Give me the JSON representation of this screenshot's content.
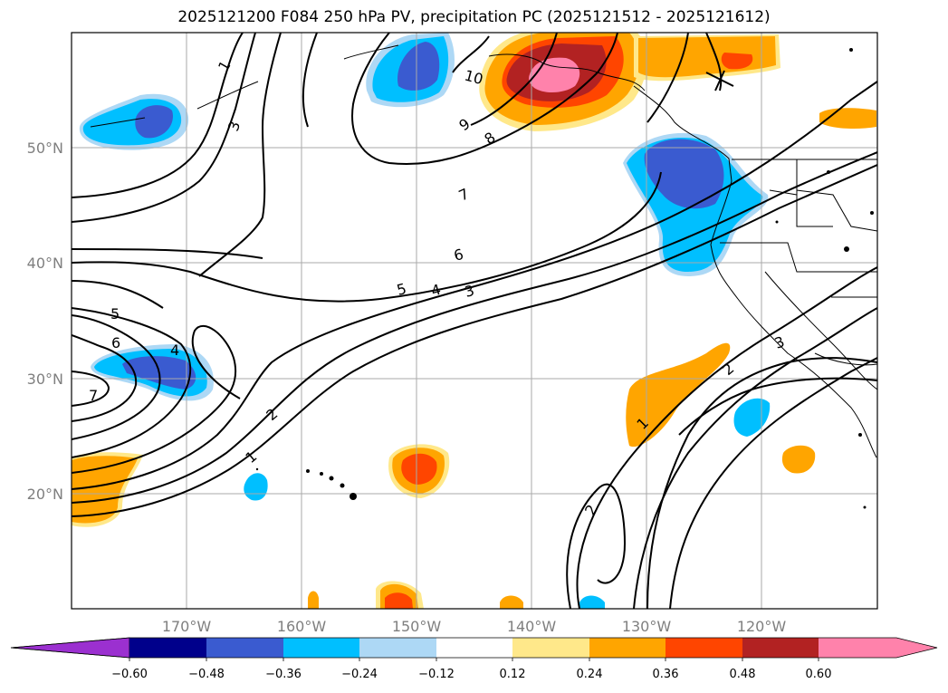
{
  "title": "2025121200 F084 250 hPa PV, precipitation PC (2025121512 - 2025121612)",
  "map": {
    "lon_range": [
      -180,
      -110
    ],
    "lat_range": [
      10,
      60
    ],
    "lat_ticks": [
      "50°N",
      "40°N",
      "30°N",
      "20°N"
    ],
    "lon_ticks": [
      "170°W",
      "160°W",
      "150°W",
      "140°W",
      "130°W",
      "120°W"
    ],
    "contour_labels": [
      "1",
      "3",
      "10",
      "9",
      "8",
      "7",
      "6",
      "5",
      "4",
      "3",
      "5",
      "6",
      "7",
      "4",
      "2",
      "1",
      "2",
      "1",
      "2",
      "3"
    ]
  },
  "colorbar": {
    "tick_labels": [
      "−0.60",
      "−0.48",
      "−0.36",
      "−0.24",
      "−0.12",
      "0.12",
      "0.24",
      "0.36",
      "0.48",
      "0.60"
    ],
    "colors": [
      "#9b30d0",
      "#00008b",
      "#3a5bd0",
      "#00bfff",
      "#add8f5",
      "#ffffff",
      "#ffe88a",
      "#ffa500",
      "#ff4500",
      "#b22222",
      "#ff82ab"
    ]
  }
}
